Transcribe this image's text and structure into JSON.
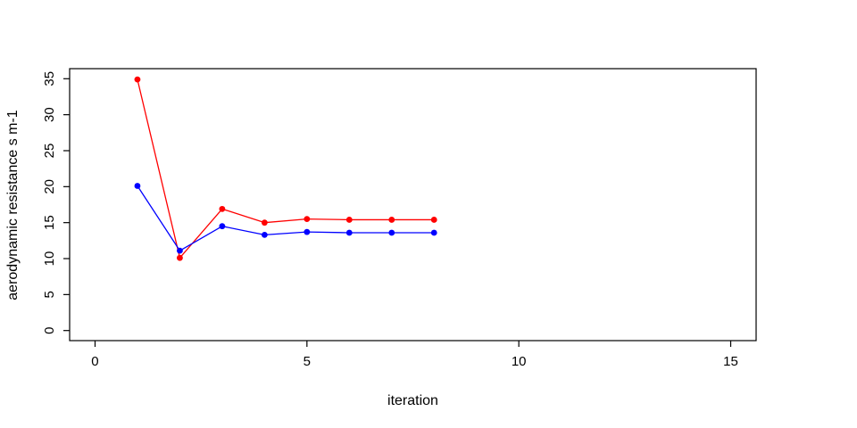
{
  "chart_data": {
    "type": "line",
    "title": "",
    "xlabel": "iteration",
    "ylabel": "aerodynamic resistance s m-1",
    "x": [
      1,
      2,
      3,
      4,
      5,
      6,
      7,
      8
    ],
    "series": [
      {
        "name": "red-series",
        "color": "#ff0000",
        "values": [
          34.9,
          10.1,
          16.9,
          15.0,
          15.5,
          15.4,
          15.4,
          15.4
        ]
      },
      {
        "name": "blue-series",
        "color": "#0000ff",
        "values": [
          20.1,
          11.1,
          14.5,
          13.3,
          13.7,
          13.6,
          13.6,
          13.6
        ]
      }
    ],
    "xlim": [
      -0.6,
      15.6
    ],
    "ylim": [
      -1.4,
      36.4
    ],
    "xticks": [
      0,
      5,
      10,
      15
    ],
    "yticks": [
      0,
      5,
      10,
      15,
      20,
      25,
      30,
      35
    ],
    "grid": false,
    "legend": "none",
    "marker": "filled-circle",
    "background_color": "#ffffff",
    "axis_color": "#000000"
  }
}
